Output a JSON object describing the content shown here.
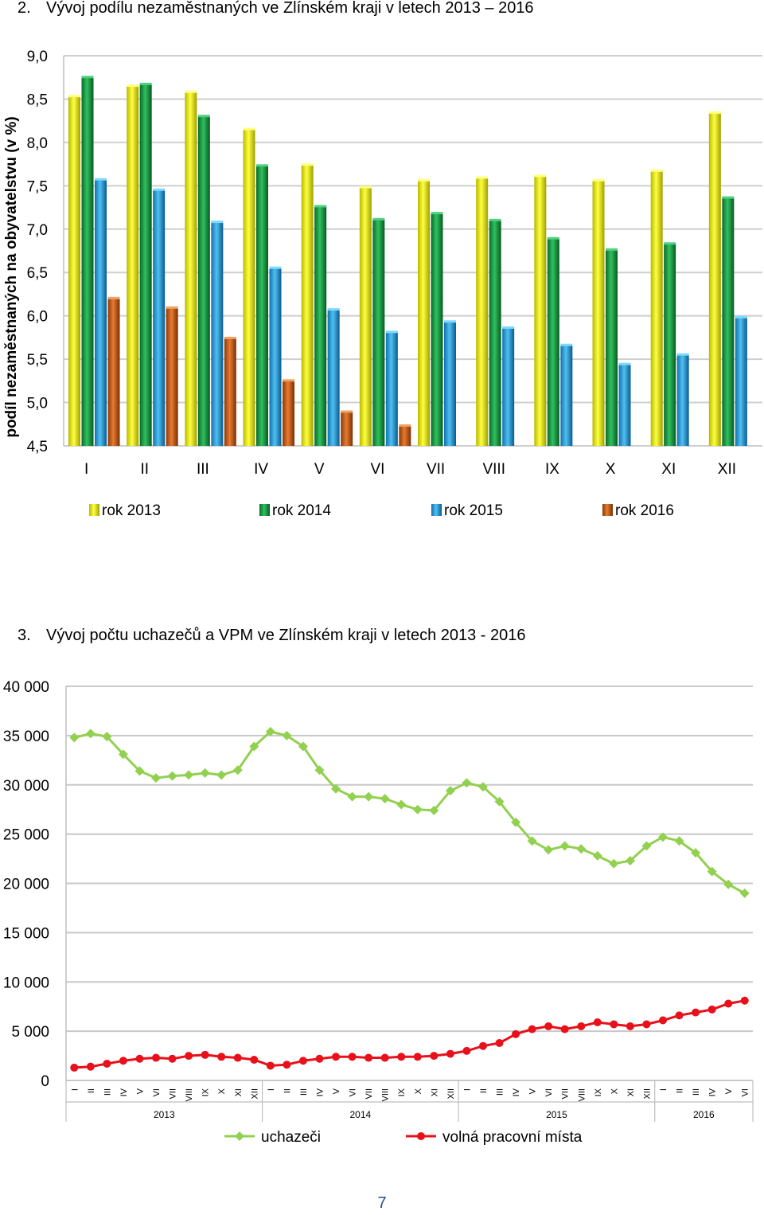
{
  "chart1_heading": {
    "number": "2.",
    "text": "Vývoj podílu nezaměstnaných ve Zlínském kraji v letech 2013 – 2016"
  },
  "chart2_heading": {
    "number": "3.",
    "text": "Vývoj počtu uchazečů a VPM ve Zlínském kraji v letech 2013 - 2016"
  },
  "page_number": "7",
  "colors": {
    "rok_2013": "#e8e81a",
    "rok_2014": "#1a9a4a",
    "rok_2015": "#2a9fdc",
    "rok_2016": "#c9601a",
    "uchazeci": "#92d050",
    "volna_mista": "#e8101a"
  },
  "chart_data": [
    {
      "type": "bar",
      "title": "",
      "xlabel": "",
      "ylabel": "podíl nezaměstnaných na obyvatelstvu (v %)",
      "ylim": [
        4.5,
        9.0
      ],
      "yticks": [
        "4,5",
        "5,0",
        "5,5",
        "6,0",
        "6,5",
        "7,0",
        "7,5",
        "8,0",
        "8,5",
        "9,0"
      ],
      "grid": true,
      "legend_position": "bottom",
      "categories": [
        "I",
        "II",
        "III",
        "IV",
        "V",
        "VI",
        "VII",
        "VIII",
        "IX",
        "X",
        "XI",
        "XII"
      ],
      "series": [
        {
          "name": "rok 2013",
          "values": [
            8.53,
            8.65,
            8.58,
            8.15,
            7.74,
            7.48,
            7.56,
            7.59,
            7.61,
            7.56,
            7.67,
            8.34
          ]
        },
        {
          "name": "rok 2014",
          "values": [
            8.75,
            8.67,
            8.3,
            7.73,
            7.26,
            7.11,
            7.18,
            7.1,
            6.89,
            6.76,
            6.83,
            7.36
          ]
        },
        {
          "name": "rok 2015",
          "values": [
            7.57,
            7.45,
            7.08,
            6.55,
            6.07,
            5.81,
            5.93,
            5.86,
            5.66,
            5.44,
            5.55,
            5.98
          ]
        },
        {
          "name": "rok 2016",
          "values": [
            6.2,
            6.09,
            5.74,
            5.25,
            4.89,
            4.73,
            null,
            null,
            null,
            null,
            null,
            null
          ]
        }
      ]
    },
    {
      "type": "line",
      "title": "",
      "xlabel": "",
      "ylabel": "",
      "ylim": [
        0,
        40000
      ],
      "yticks": [
        "0",
        "5 000",
        "10 000",
        "15 000",
        "20 000",
        "25 000",
        "30 000",
        "35 000",
        "40 000"
      ],
      "grid": true,
      "legend_position": "bottom",
      "year_groups": [
        {
          "label": "2013",
          "months": [
            "I",
            "II",
            "III",
            "IV",
            "V",
            "VI",
            "VII",
            "VIII",
            "IX",
            "X",
            "XI",
            "XII"
          ]
        },
        {
          "label": "2014",
          "months": [
            "I",
            "II",
            "III",
            "IV",
            "V",
            "VI",
            "VII",
            "VIII",
            "IX",
            "X",
            "XI",
            "XII"
          ]
        },
        {
          "label": "2015",
          "months": [
            "I",
            "II",
            "III",
            "IV",
            "V",
            "VI",
            "VII",
            "VIII",
            "IX",
            "X",
            "XI",
            "XII"
          ]
        },
        {
          "label": "2016",
          "months": [
            "I",
            "II",
            "III",
            "IV",
            "V",
            "VI"
          ]
        }
      ],
      "series": [
        {
          "name": "uchazeči",
          "marker": "diamond",
          "values": [
            34800,
            35200,
            34900,
            33100,
            31400,
            30700,
            30900,
            31000,
            31200,
            31000,
            31500,
            33900,
            35400,
            35000,
            33900,
            31500,
            29600,
            28800,
            28800,
            28600,
            28000,
            27500,
            27400,
            29400,
            30200,
            29800,
            28300,
            26200,
            24300,
            23400,
            23800,
            23500,
            22800,
            22000,
            22300,
            23800,
            24700,
            24300,
            23100,
            21200,
            19900,
            19000
          ]
        },
        {
          "name": "volná pracovní místa",
          "marker": "circle",
          "values": [
            1300,
            1400,
            1700,
            2000,
            2200,
            2300,
            2200,
            2500,
            2600,
            2400,
            2300,
            2100,
            1500,
            1600,
            2000,
            2200,
            2400,
            2400,
            2300,
            2300,
            2400,
            2400,
            2500,
            2700,
            3000,
            3500,
            3800,
            4700,
            5200,
            5500,
            5200,
            5500,
            5900,
            5700,
            5500,
            5700,
            6100,
            6600,
            6900,
            7200,
            7800,
            8100
          ]
        }
      ]
    }
  ]
}
